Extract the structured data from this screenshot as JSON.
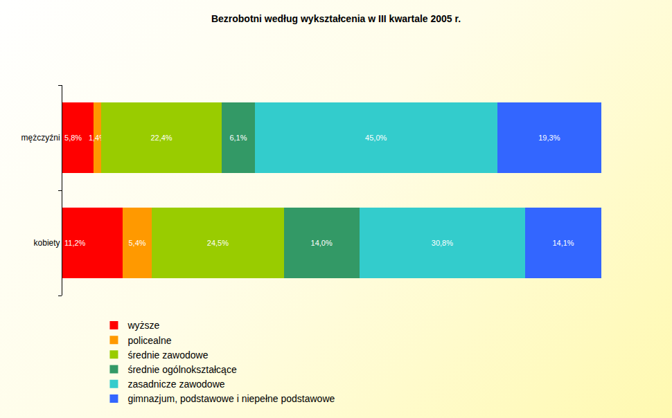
{
  "chart_data": {
    "type": "bar",
    "title": "Bezrobotni według wykształcenia w III kwartale 2005 r.",
    "orientation": "horizontal",
    "stacked": true,
    "data_labels": true,
    "tick_labels": "y",
    "grid": false,
    "legend": "bottom",
    "categories": [
      "mężczyźni",
      "kobiety"
    ],
    "xlim": [
      0,
      100
    ],
    "series": [
      {
        "name": "wyższe",
        "color": "#ff0000",
        "values": [
          5.8,
          11.2
        ],
        "value_labels": [
          "5,8%",
          "11,2%"
        ]
      },
      {
        "name": "policealne",
        "color": "#ff9900",
        "values": [
          1.4,
          5.4
        ],
        "value_labels": [
          "1,4%",
          "5,4%"
        ]
      },
      {
        "name": "średnie zawodowe",
        "color": "#99cc00",
        "values": [
          22.4,
          24.5
        ],
        "value_labels": [
          "22,4%",
          "24,5%"
        ]
      },
      {
        "name": "średnie ogólnokształcące",
        "color": "#339966",
        "values": [
          6.1,
          14.0
        ],
        "value_labels": [
          "6,1%",
          "14,0%"
        ]
      },
      {
        "name": "zasadnicze zawodowe",
        "color": "#33cccc",
        "values": [
          45.0,
          30.8
        ],
        "value_labels": [
          "45,0%",
          "30,8%"
        ]
      },
      {
        "name": "gimnazjum, podstawowe i niepełne podstawowe",
        "color": "#3366ff",
        "values": [
          19.3,
          14.1
        ],
        "value_labels": [
          "19,3%",
          "14,1%"
        ]
      }
    ]
  }
}
